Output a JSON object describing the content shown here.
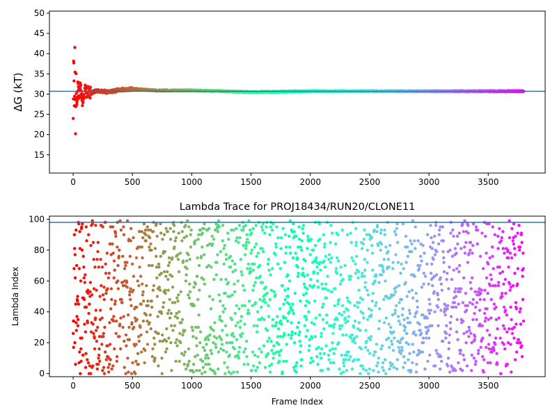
{
  "chart_data": [
    {
      "type": "scatter",
      "title": "",
      "xlabel": "",
      "ylabel": "ΔG (kT)",
      "xlim": [
        -200,
        3980
      ],
      "ylim": [
        10.5,
        50.5
      ],
      "x_ticks": [
        0,
        500,
        1000,
        1500,
        2000,
        2500,
        3000,
        3500
      ],
      "y_ticks": [
        15,
        20,
        25,
        30,
        35,
        40,
        45,
        50
      ],
      "grid": false,
      "colormap": "rainbow (red at frame 0 → violet at last frame)",
      "n_points": 3800,
      "reference_line": {
        "y": 30.7,
        "color": "#1f77b4"
      },
      "series": [
        {
          "x_range": [
            0,
            3799
          ],
          "convergence_value": 30.7,
          "x": [
            0,
            5,
            10,
            15,
            20,
            25,
            30,
            40,
            50,
            60,
            80,
            100,
            150,
            200,
            300,
            400,
            500,
            700,
            1000,
            1500,
            2000,
            3000,
            3800
          ],
          "y": [
            20,
            42,
            26,
            40,
            22,
            35,
            27,
            33,
            29,
            32,
            28,
            31,
            30.2,
            30.8,
            30.5,
            31.1,
            31.3,
            30.9,
            30.9,
            30.5,
            30.7,
            30.7,
            30.7
          ]
        }
      ]
    },
    {
      "type": "scatter",
      "title": "Lambda Trace for PROJ18434/RUN20/CLONE11",
      "xlabel": "Frame Index",
      "ylabel": "Lambda Index",
      "xlim": [
        -200,
        3980
      ],
      "ylim": [
        -2,
        102
      ],
      "x_ticks": [
        0,
        500,
        1000,
        1500,
        2000,
        2500,
        3000,
        3500
      ],
      "y_ticks": [
        0,
        20,
        40,
        60,
        80,
        100
      ],
      "grid": false,
      "colormap": "rainbow (red at frame 0 → violet at last frame)",
      "n_points": 3800,
      "reference_line": {
        "y": 98,
        "color": "#1f77b4"
      },
      "series": [
        {
          "x_range": [
            0,
            3799
          ],
          "y_range": [
            0,
            99
          ],
          "distribution": "uniform random walk over lambda indices 0–99"
        }
      ]
    }
  ]
}
